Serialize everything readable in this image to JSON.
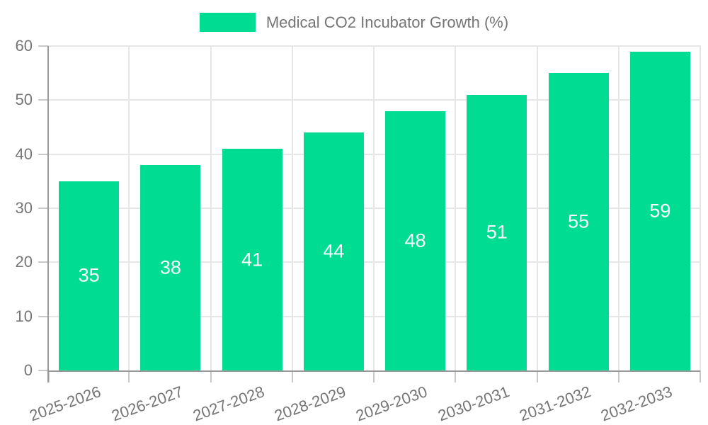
{
  "legend": {
    "label": "Medical CO2 Incubator Growth (%)"
  },
  "chart_data": {
    "type": "bar",
    "title": "Medical CO2 Incubator Growth (%)",
    "categories": [
      "2025-2026",
      "2026-2027",
      "2027-2028",
      "2028-2029",
      "2029-2030",
      "2030-2031",
      "2031-2032",
      "2032-2033"
    ],
    "values": [
      35,
      38,
      41,
      44,
      48,
      51,
      55,
      59
    ],
    "xlabel": "",
    "ylabel": "",
    "ylim": [
      0,
      60
    ],
    "yticks": [
      0,
      10,
      20,
      30,
      40,
      50,
      60
    ],
    "grid": true,
    "legend_position": "top-center",
    "bar_labels_inside": true,
    "colors": {
      "bar": "#00DC92",
      "bar_label": "#FFFFFF",
      "axis_text": "#757575",
      "grid_line": "#E6E6E6",
      "tick": "#C9C9C9",
      "axis_line": "#999999",
      "background": "#FFFFFF"
    }
  }
}
